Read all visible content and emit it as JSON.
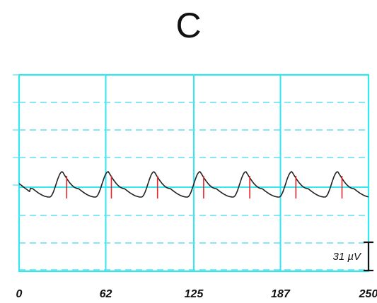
{
  "panel": {
    "label": "C"
  },
  "chart_data": {
    "type": "line",
    "title": "C",
    "xlabel": "",
    "ylabel": "",
    "x_ticks": [
      0,
      62,
      125,
      187,
      250
    ],
    "xlim": [
      0,
      250
    ],
    "grid": true,
    "peak_count": 7,
    "peak_times": [
      31,
      63,
      96,
      129,
      162,
      195,
      228
    ],
    "scale_bar": {
      "label": "31 µV",
      "value": 31,
      "unit": "µV"
    },
    "colors": {
      "grid_major": "#2ee8f2",
      "grid_minor": "#5ee0f0",
      "trace": "#222222",
      "marker": "#e8232a",
      "scale_bar": "#111111"
    }
  }
}
